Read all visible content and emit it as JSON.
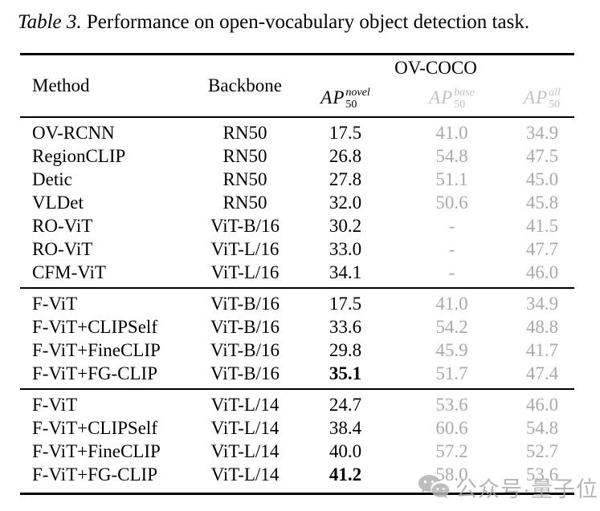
{
  "caption": {
    "label": "Table 3.",
    "text": " Performance on open-vocabulary object detection task."
  },
  "header": {
    "method": "Method",
    "backbone": "Backbone",
    "group": "OV-COCO",
    "metrics": [
      {
        "base": "AP",
        "sup": "novel",
        "sub": "50",
        "gray": false
      },
      {
        "base": "AP",
        "sup": "base",
        "sub": "50",
        "gray": true
      },
      {
        "base": "AP",
        "sup": "all",
        "sub": "50",
        "gray": true
      }
    ]
  },
  "chart_data": {
    "type": "table",
    "title": "Table 3. Performance on open-vocabulary object detection task.",
    "columns": [
      "Method",
      "Backbone",
      "AP50_novel",
      "AP50_base",
      "AP50_all"
    ],
    "sections": [
      {
        "rows": [
          {
            "method": "OV-RCNN",
            "backbone": "RN50",
            "novel": "17.5",
            "base": "41.0",
            "all": "34.9",
            "novel_bold": false
          },
          {
            "method": "RegionCLIP",
            "backbone": "RN50",
            "novel": "26.8",
            "base": "54.8",
            "all": "47.5",
            "novel_bold": false
          },
          {
            "method": "Detic",
            "backbone": "RN50",
            "novel": "27.8",
            "base": "51.1",
            "all": "45.0",
            "novel_bold": false
          },
          {
            "method": "VLDet",
            "backbone": "RN50",
            "novel": "32.0",
            "base": "50.6",
            "all": "45.8",
            "novel_bold": false
          },
          {
            "method": "RO-ViT",
            "backbone": "ViT-B/16",
            "novel": "30.2",
            "base": "-",
            "all": "41.5",
            "novel_bold": false
          },
          {
            "method": "RO-ViT",
            "backbone": "ViT-L/16",
            "novel": "33.0",
            "base": "-",
            "all": "47.7",
            "novel_bold": false
          },
          {
            "method": "CFM-ViT",
            "backbone": "ViT-L/16",
            "novel": "34.1",
            "base": "-",
            "all": "46.0",
            "novel_bold": false
          }
        ]
      },
      {
        "rows": [
          {
            "method": "F-ViT",
            "backbone": "ViT-B/16",
            "novel": "17.5",
            "base": "41.0",
            "all": "34.9",
            "novel_bold": false
          },
          {
            "method": "F-ViT+CLIPSelf",
            "backbone": "ViT-B/16",
            "novel": "33.6",
            "base": "54.2",
            "all": "48.8",
            "novel_bold": false
          },
          {
            "method": "F-ViT+FineCLIP",
            "backbone": "ViT-B/16",
            "novel": "29.8",
            "base": "45.9",
            "all": "41.7",
            "novel_bold": false
          },
          {
            "method": "F-ViT+FG-CLIP",
            "backbone": "ViT-B/16",
            "novel": "35.1",
            "base": "51.7",
            "all": "47.4",
            "novel_bold": true
          }
        ]
      },
      {
        "rows": [
          {
            "method": "F-ViT",
            "backbone": "ViT-L/14",
            "novel": "24.7",
            "base": "53.6",
            "all": "46.0",
            "novel_bold": false
          },
          {
            "method": "F-ViT+CLIPSelf",
            "backbone": "ViT-L/14",
            "novel": "38.4",
            "base": "60.6",
            "all": "54.8",
            "novel_bold": false
          },
          {
            "method": "F-ViT+FineCLIP",
            "backbone": "ViT-L/14",
            "novel": "40.0",
            "base": "57.2",
            "all": "52.7",
            "novel_bold": false
          },
          {
            "method": "F-ViT+FG-CLIP",
            "backbone": "ViT-L/14",
            "novel": "41.2",
            "base": "58.0",
            "all": "53.6",
            "novel_bold": true
          }
        ]
      }
    ]
  },
  "watermark": {
    "icon": "wechat-chat-bubbles-icon",
    "text": "公众号·量子位"
  },
  "colors": {
    "text": "#000000",
    "muted": "#a9a9a9",
    "muted_header": "#c2c2c2",
    "watermark": "#aaaaaa"
  }
}
